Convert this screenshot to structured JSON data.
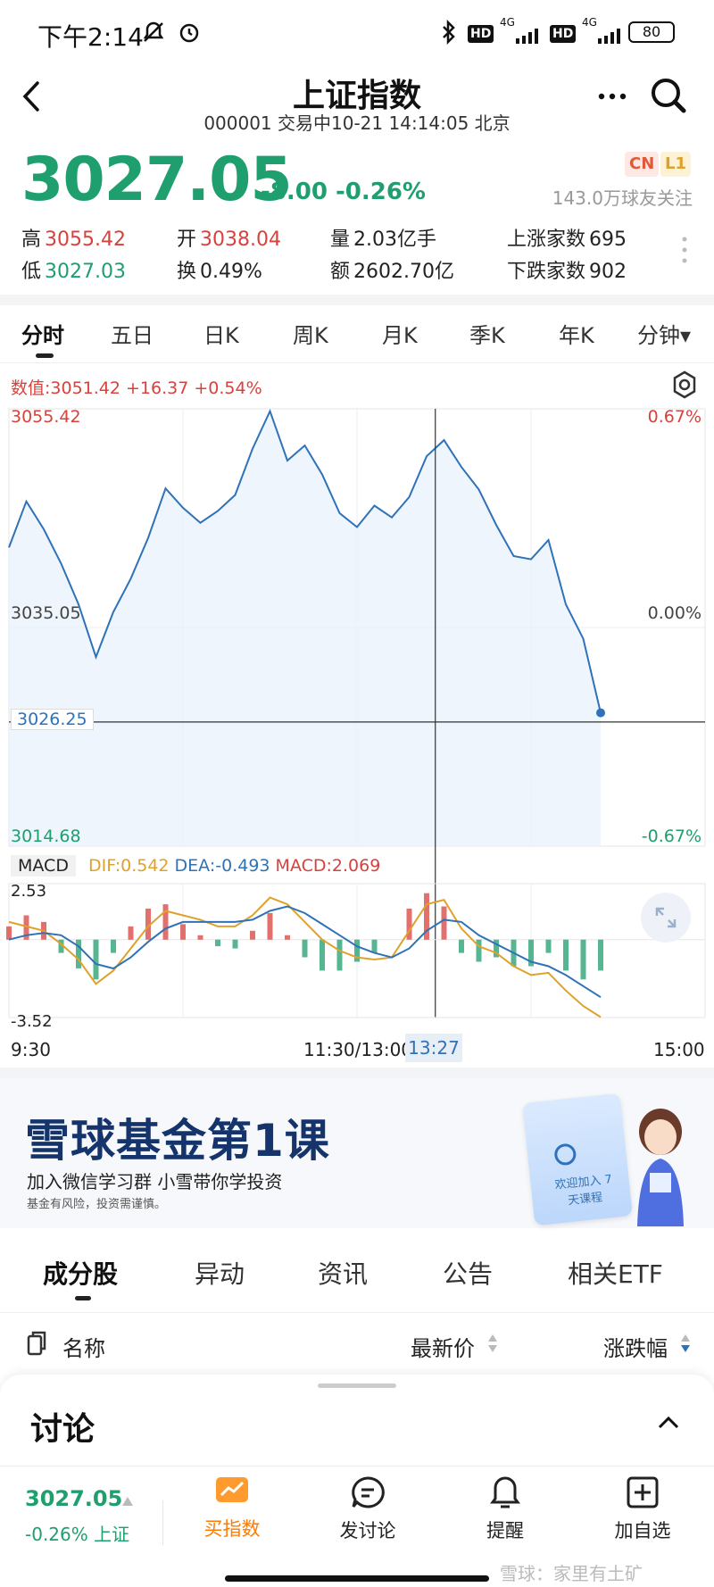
{
  "status_bar": {
    "time": "下午2:14",
    "network_1": "4G",
    "network_2": "4G",
    "hd_1": "HD",
    "hd_2": "HD",
    "battery": "80"
  },
  "header": {
    "title": "上证指数",
    "subtitle": "000001 交易中10-21 14:14:05 北京"
  },
  "quote": {
    "price": "3027.05",
    "change": "-8.00 -0.26%",
    "badge_cn": "CN",
    "badge_l1": "L1",
    "followers": "143.0万球友关注"
  },
  "stats": {
    "high_label": "高",
    "high": "3055.42",
    "low_label": "低",
    "low": "3027.03",
    "open_label": "开",
    "open": "3038.04",
    "turnover_label": "换",
    "turnover": "0.49%",
    "volume_label": "量",
    "volume": "2.03亿手",
    "amount_label": "额",
    "amount": "2602.70亿",
    "up_label": "上涨家数",
    "up": "695",
    "down_label": "下跌家数",
    "down": "902"
  },
  "period_tabs": [
    "分时",
    "五日",
    "日K",
    "周K",
    "月K",
    "季K",
    "年K",
    "分钟▾"
  ],
  "chart_readout": "数值:3051.42 +16.37 +0.54%",
  "price_axis": {
    "top": "3055.42",
    "mid": "3035.05",
    "bottom": "3014.68",
    "cursor": "3026.25",
    "top_pct": "0.67%",
    "mid_pct": "0.00%",
    "bottom_pct": "-0.67%"
  },
  "macd_legend": {
    "tag": "MACD",
    "dif": "DIF:0.542",
    "dea": "DEA:-0.493",
    "macd": "MACD:2.069"
  },
  "macd_axis": {
    "top": "2.53",
    "bottom": "-3.52"
  },
  "time_axis": {
    "start": "9:30",
    "mid": "11:30/13:00",
    "cursor": "13:27",
    "end": "15:00"
  },
  "colors": {
    "up": "#d8413c",
    "down": "#1f9e6e",
    "line": "#2f72b8",
    "dif": "#e0a12a",
    "dea": "#2f72b8"
  },
  "chart_data": {
    "type": "line",
    "title": "",
    "ylim": [
      3014.68,
      3055.42
    ],
    "baseline": 3035.05,
    "y_ticks": [
      3055.42,
      3035.05,
      3014.68
    ],
    "x_ticks": [
      "9:30",
      "11:30/13:00",
      "15:00"
    ],
    "x_minutes": [
      0,
      6,
      12,
      18,
      24,
      30,
      36,
      42,
      48,
      54,
      60,
      66,
      72,
      78,
      84,
      90,
      96,
      102,
      108,
      114,
      120,
      126,
      132,
      138,
      144,
      150,
      156,
      162,
      168,
      174,
      180,
      186,
      192,
      198,
      204
    ],
    "x_domain_minutes": [
      0,
      240
    ],
    "series": [
      {
        "values": [
          3042.5,
          3046.8,
          3044.2,
          3041.0,
          3037.2,
          3032.3,
          3036.5,
          3039.6,
          3043.4,
          3048.0,
          3046.2,
          3044.8,
          3045.9,
          3047.4,
          3051.7,
          3055.2,
          3050.6,
          3052.0,
          3049.3,
          3045.7,
          3044.4,
          3046.4,
          3045.3,
          3047.2,
          3051.0,
          3052.5,
          3050.0,
          3047.9,
          3044.6,
          3041.7,
          3041.4,
          3043.2,
          3037.2,
          3034.0,
          3027.1
        ]
      },
      {
        "name": "DIF",
        "values": [
          0.8,
          0.6,
          0.4,
          -0.2,
          -0.9,
          -2.0,
          -1.4,
          -0.4,
          0.6,
          1.3,
          1.1,
          0.9,
          0.6,
          0.6,
          1.1,
          1.9,
          1.6,
          0.8,
          0.0,
          -0.5,
          -0.8,
          -0.9,
          -0.8,
          0.4,
          1.6,
          1.8,
          0.5,
          -0.3,
          -0.6,
          -1.2,
          -1.6,
          -1.5,
          -2.3,
          -3.0,
          -3.5
        ]
      },
      {
        "name": "DEA",
        "values": [
          0.0,
          0.2,
          0.3,
          0.2,
          -0.3,
          -1.1,
          -1.3,
          -0.8,
          -0.1,
          0.5,
          0.8,
          0.8,
          0.8,
          0.8,
          0.9,
          1.3,
          1.5,
          1.2,
          0.7,
          0.2,
          -0.3,
          -0.6,
          -0.8,
          -0.4,
          0.4,
          0.9,
          0.8,
          0.2,
          -0.2,
          -0.6,
          -1.0,
          -1.2,
          -1.6,
          -2.1,
          -2.6
        ]
      },
      {
        "name": "MACD",
        "values": [
          0.6,
          1.1,
          0.8,
          -0.6,
          -1.3,
          -1.8,
          -0.6,
          0.6,
          1.4,
          1.6,
          0.7,
          0.2,
          -0.3,
          -0.4,
          0.4,
          1.2,
          0.2,
          -0.8,
          -1.4,
          -1.4,
          -1.0,
          -0.6,
          0.0,
          1.4,
          2.1,
          1.5,
          -0.6,
          -1.0,
          -0.8,
          -1.2,
          -1.2,
          -0.6,
          -1.4,
          -1.8,
          -1.4
        ]
      }
    ],
    "macd_ylim": [
      -3.52,
      2.53
    ]
  },
  "banner": {
    "title": "雪球基金第1课",
    "subtitle": "加入微信学习群 小雪带你学投资",
    "note": "基金有风险，投资需谨慎。",
    "card_text": "欢迎加入 7天课程"
  },
  "section_tabs": [
    "成分股",
    "异动",
    "资讯",
    "公告",
    "相关ETF"
  ],
  "list_header": {
    "name": "名称",
    "price": "最新价",
    "change": "涨跌幅"
  },
  "discussion": {
    "title": "讨论"
  },
  "bottom_bar": {
    "mini_price": "3027.05",
    "mini_change": "-0.26% 上证",
    "buy": "买指数",
    "discuss": "发讨论",
    "alert": "提醒",
    "watchlist": "加自选"
  },
  "watermark": "雪球：家里有土矿"
}
